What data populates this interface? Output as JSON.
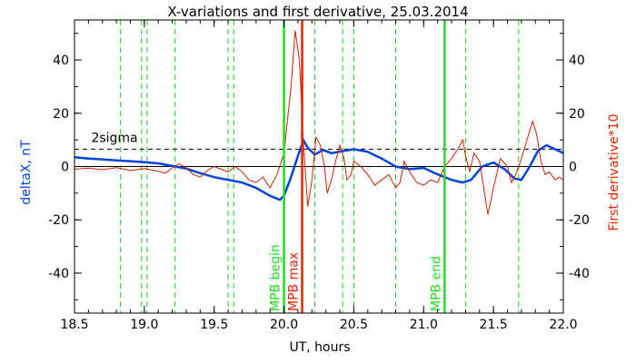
{
  "chart_data": {
    "type": "line",
    "title": "X-variations and first derivative, 25.03.2014",
    "xlabel": "UT, hours",
    "ylabel_left": "deltaX, nT",
    "ylabel_right": "First derivative*10",
    "xlim": [
      18.5,
      22.0
    ],
    "ylim": [
      -55,
      55
    ],
    "x_ticks": [
      "18.5",
      "19.0",
      "19.5",
      "20.0",
      "20.5",
      "21.0",
      "21.5",
      "22.0"
    ],
    "y_ticks": [
      "-40",
      "-20",
      "0",
      "20",
      "40"
    ],
    "y_ticks_right": [
      "-40",
      "-20",
      "0",
      "20",
      "40"
    ],
    "sigma_label": "2sigma",
    "sigma_level": 6.5,
    "zero_level": 0,
    "dashed_event_lines": [
      18.83,
      18.98,
      19.02,
      19.22,
      19.6,
      19.64,
      20.22,
      20.42,
      20.5,
      20.8,
      21.3,
      21.68
    ],
    "markers": [
      {
        "label": "MPB begin",
        "x": 20.0,
        "color": "#22dd22"
      },
      {
        "label": "MPB max",
        "x": 20.13,
        "color": "#ee2200"
      },
      {
        "label": "MPB end",
        "x": 21.15,
        "color": "#22dd22"
      }
    ],
    "series": [
      {
        "color": "#0044dd",
        "axis": "left",
        "points": [
          [
            18.5,
            3.5
          ],
          [
            18.6,
            3
          ],
          [
            18.7,
            2.7
          ],
          [
            18.8,
            2.3
          ],
          [
            18.9,
            2
          ],
          [
            19.0,
            1.6
          ],
          [
            19.1,
            1.2
          ],
          [
            19.2,
            0.2
          ],
          [
            19.3,
            -0.8
          ],
          [
            19.4,
            -2.5
          ],
          [
            19.5,
            -4
          ],
          [
            19.6,
            -5
          ],
          [
            19.7,
            -6
          ],
          [
            19.8,
            -8
          ],
          [
            19.9,
            -11
          ],
          [
            19.97,
            -12.5
          ],
          [
            20.0,
            -11
          ],
          [
            20.05,
            -4
          ],
          [
            20.1,
            4
          ],
          [
            20.14,
            9.8
          ],
          [
            20.17,
            7
          ],
          [
            20.22,
            4.5
          ],
          [
            20.28,
            6.2
          ],
          [
            20.34,
            5
          ],
          [
            20.42,
            5.8
          ],
          [
            20.5,
            6.5
          ],
          [
            20.6,
            5.5
          ],
          [
            20.7,
            3
          ],
          [
            20.8,
            0
          ],
          [
            20.9,
            -1
          ],
          [
            21.0,
            -0.5
          ],
          [
            21.08,
            -2.5
          ],
          [
            21.15,
            -4
          ],
          [
            21.2,
            -5
          ],
          [
            21.28,
            -6
          ],
          [
            21.34,
            -5
          ],
          [
            21.42,
            0
          ],
          [
            21.5,
            1.5
          ],
          [
            21.58,
            -1
          ],
          [
            21.65,
            -4.5
          ],
          [
            21.7,
            -5
          ],
          [
            21.76,
            0
          ],
          [
            21.82,
            6
          ],
          [
            21.88,
            8
          ],
          [
            21.94,
            6.5
          ],
          [
            22.0,
            5
          ]
        ]
      },
      {
        "color": "#cc2200",
        "axis": "right",
        "points": [
          [
            18.5,
            -1
          ],
          [
            18.6,
            -0.6
          ],
          [
            18.7,
            -1.2
          ],
          [
            18.8,
            -0.4
          ],
          [
            18.9,
            -1.5
          ],
          [
            19.0,
            -0.8
          ],
          [
            19.1,
            -1.8
          ],
          [
            19.15,
            -2.5
          ],
          [
            19.2,
            -0.5
          ],
          [
            19.25,
            1
          ],
          [
            19.3,
            -0.5
          ],
          [
            19.35,
            -3
          ],
          [
            19.4,
            -4
          ],
          [
            19.45,
            -1.5
          ],
          [
            19.5,
            0
          ],
          [
            19.55,
            -1
          ],
          [
            19.6,
            -2
          ],
          [
            19.65,
            0
          ],
          [
            19.7,
            -2
          ],
          [
            19.75,
            -5
          ],
          [
            19.8,
            -6
          ],
          [
            19.85,
            -4
          ],
          [
            19.9,
            -8
          ],
          [
            19.95,
            -3
          ],
          [
            20.0,
            5
          ],
          [
            20.05,
            30
          ],
          [
            20.08,
            51
          ],
          [
            20.11,
            40
          ],
          [
            20.14,
            8
          ],
          [
            20.17,
            -15
          ],
          [
            20.2,
            -5
          ],
          [
            20.23,
            11
          ],
          [
            20.26,
            8
          ],
          [
            20.29,
            0
          ],
          [
            20.31,
            -10
          ],
          [
            20.34,
            -5
          ],
          [
            20.37,
            2
          ],
          [
            20.4,
            8
          ],
          [
            20.43,
            3
          ],
          [
            20.45,
            -5
          ],
          [
            20.48,
            -3
          ],
          [
            20.5,
            2
          ],
          [
            20.55,
            0
          ],
          [
            20.6,
            -3
          ],
          [
            20.65,
            -7
          ],
          [
            20.7,
            -5
          ],
          [
            20.75,
            -3
          ],
          [
            20.8,
            -8
          ],
          [
            20.83,
            -6
          ],
          [
            20.86,
            2
          ],
          [
            20.9,
            -2
          ],
          [
            20.95,
            -6
          ],
          [
            21.0,
            -7
          ],
          [
            21.05,
            -5
          ],
          [
            21.1,
            -6
          ],
          [
            21.15,
            0
          ],
          [
            21.2,
            3
          ],
          [
            21.25,
            7
          ],
          [
            21.28,
            10
          ],
          [
            21.3,
            4
          ],
          [
            21.33,
            -2
          ],
          [
            21.36,
            5
          ],
          [
            21.4,
            2
          ],
          [
            21.43,
            -8
          ],
          [
            21.46,
            -18
          ],
          [
            21.5,
            -8
          ],
          [
            21.55,
            3
          ],
          [
            21.6,
            0
          ],
          [
            21.63,
            -6
          ],
          [
            21.66,
            -3
          ],
          [
            21.7,
            3
          ],
          [
            21.74,
            10
          ],
          [
            21.78,
            17
          ],
          [
            21.81,
            12
          ],
          [
            21.84,
            2
          ],
          [
            21.87,
            -3
          ],
          [
            21.9,
            -2
          ],
          [
            21.94,
            -5
          ],
          [
            21.97,
            -4
          ],
          [
            22.0,
            -5
          ]
        ]
      }
    ]
  }
}
